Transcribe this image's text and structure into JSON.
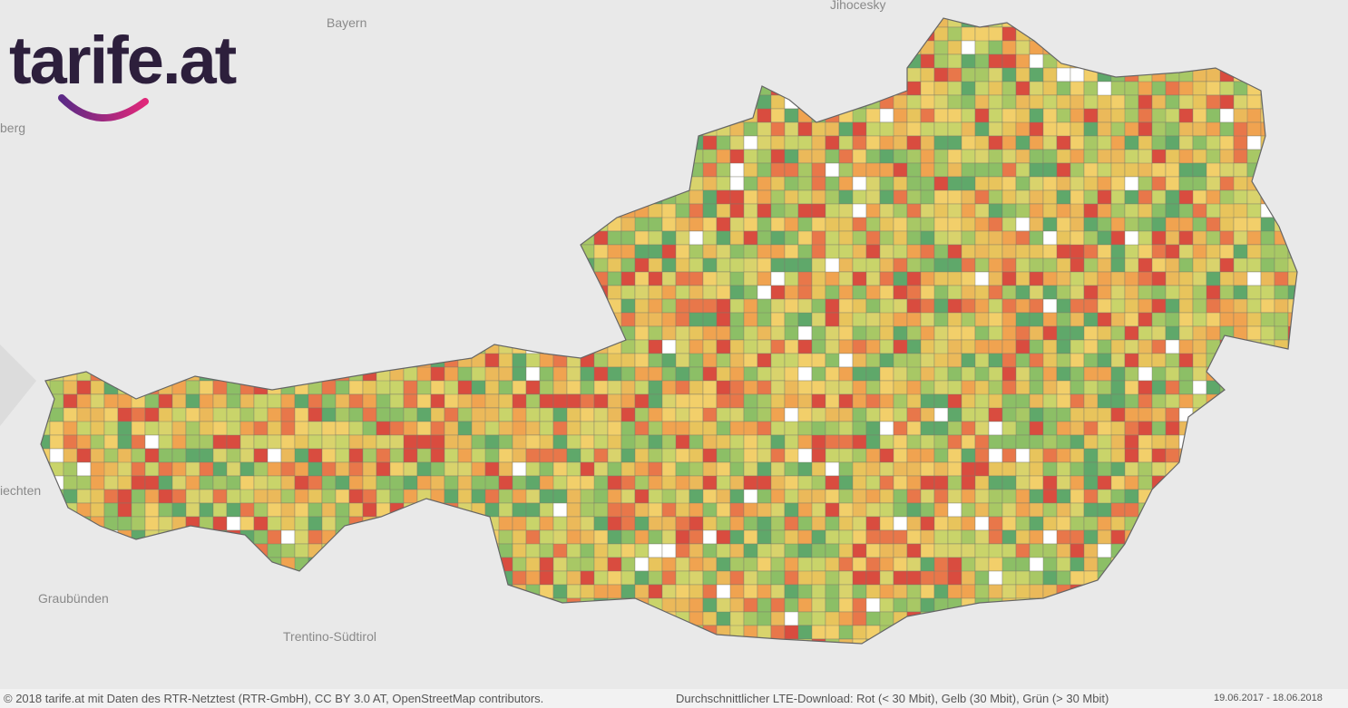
{
  "logo": {
    "text": "tarife.at"
  },
  "map_labels": [
    "Bayern",
    "Jihocesky",
    "berg",
    "iechten",
    "Graubünden",
    "Trentino-Südtirol"
  ],
  "footer": {
    "copyright": "© 2018 tarife.at mit Daten des RTR-Netztest (RTR-GmbH), CC BY 3.0 AT, OpenStreetMap contributors.",
    "legend": "Durchschnittlicher LTE-Download: Rot (< 30 Mbit), Gelb (30 Mbit), Grün (> 30 Mbit)",
    "date_range": "19.06.2017 - 18.06.2018"
  }
}
